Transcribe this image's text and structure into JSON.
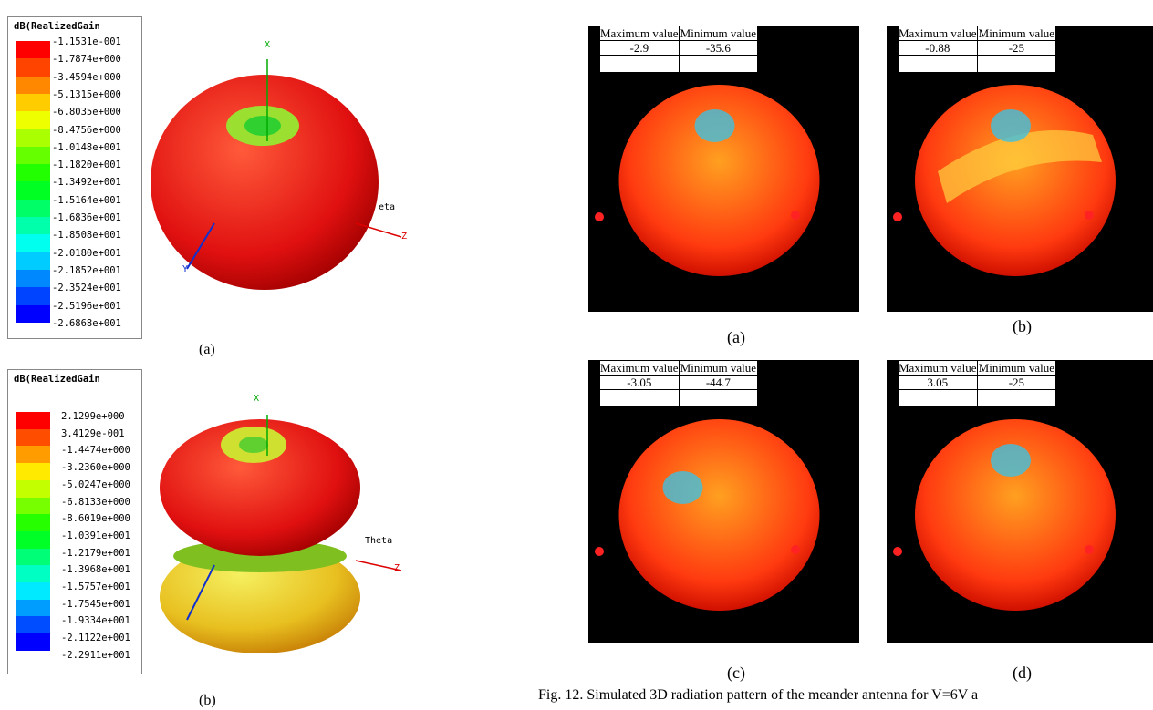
{
  "left_panels": [
    {
      "legend_title": "dB(RealizedGain",
      "legend_labels": [
        "-1.1531e-001",
        "-1.7874e+000",
        "-3.4594e+000",
        "-5.1315e+000",
        "-6.8035e+000",
        "-8.4756e+000",
        "-1.0148e+001",
        "-1.1820e+001",
        "-1.3492e+001",
        "-1.5164e+001",
        "-1.6836e+001",
        "-1.8508e+001",
        "-2.0180e+001",
        "-2.1852e+001",
        "-2.3524e+001",
        "-2.5196e+001",
        "-2.6868e+001"
      ],
      "axis_labels": [
        "X",
        "Z",
        "Y",
        "eta"
      ],
      "caption": "(a)"
    },
    {
      "legend_title": "dB(RealizedGain",
      "legend_labels": [
        "2.1299e+000",
        "3.4129e-001",
        "-1.4474e+000",
        "-3.2360e+000",
        "-5.0247e+000",
        "-6.8133e+000",
        "-8.6019e+000",
        "-1.0391e+001",
        "-1.2179e+001",
        "-1.3968e+001",
        "-1.5757e+001",
        "-1.7545e+001",
        "-1.9334e+001",
        "-2.1122e+001",
        "-2.2911e+001"
      ],
      "axis_labels": [
        "X",
        "Z",
        "Theta"
      ],
      "caption": "(b)"
    }
  ],
  "right_panels": [
    {
      "headers": [
        "Maximum value",
        "Minimum value"
      ],
      "values": [
        -2.9,
        -35.6
      ],
      "caption": "(a)"
    },
    {
      "headers": [
        "Maximum value",
        "Minimum value"
      ],
      "values": [
        -0.88,
        -25
      ],
      "caption": "(b)"
    },
    {
      "headers": [
        "Maximum value",
        "Minimum value"
      ],
      "values": [
        -3.05,
        -44.7
      ],
      "caption": "(c)"
    },
    {
      "headers": [
        "Maximum value",
        "Minimum value"
      ],
      "values": [
        3.05,
        -25
      ],
      "caption": "(d)"
    }
  ],
  "figure_caption": "Fig. 12.  Simulated 3D radiation pattern of the meander antenna for V=6V a"
}
